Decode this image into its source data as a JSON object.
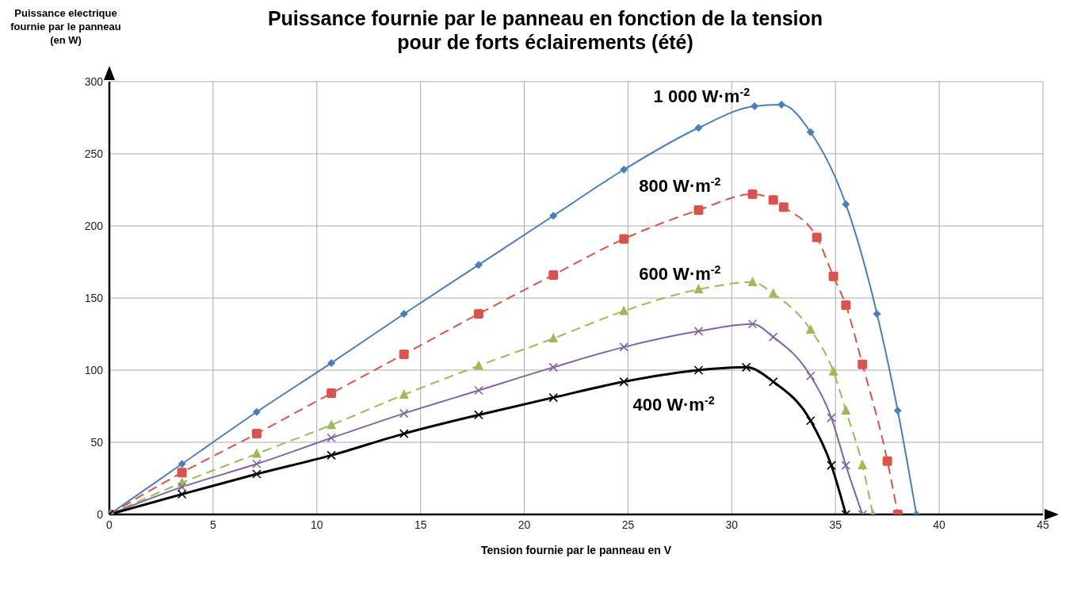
{
  "chart_data": {
    "type": "line",
    "title": "Puissance fournie par le panneau en fonction de la tension pour de forts éclairements (été)",
    "xlabel": "Tension fournie par le panneau en V",
    "ylabel": "Puissance electrique fournie par le panneau (en W)",
    "xlim": [
      0,
      45
    ],
    "xticks": [
      0,
      5,
      10,
      15,
      20,
      25,
      30,
      35,
      40,
      45
    ],
    "ylim": [
      0,
      300
    ],
    "yticks": [
      0,
      50,
      100,
      150,
      200,
      250,
      300
    ],
    "grid": true,
    "series": [
      {
        "name": "1 000 W·m$^{-2}$",
        "color": "#4a7ebb",
        "marker": "diamond",
        "line_style": "solid",
        "x": [
          0,
          3.5,
          7.1,
          10.7,
          14.2,
          17.8,
          21.4,
          24.8,
          28.4,
          31.1,
          32.4,
          33.8,
          35.5,
          37,
          38,
          38.9
        ],
        "values": [
          0,
          35,
          71,
          105,
          139,
          173,
          207,
          239,
          268,
          283,
          284,
          265,
          215,
          139,
          72,
          0
        ]
      },
      {
        "name": "800 W·m$^{-2}$",
        "color": "#d9534f",
        "marker": "square",
        "line_style": "dashed",
        "x": [
          0,
          3.5,
          7.1,
          10.7,
          14.2,
          17.8,
          21.4,
          24.8,
          28.4,
          31,
          32,
          32.5,
          34.1,
          34.9,
          35.5,
          36.3,
          37.5,
          38
        ],
        "values": [
          0,
          29,
          56,
          84,
          111,
          139,
          166,
          191,
          211,
          222,
          218,
          213,
          192,
          165,
          145,
          104,
          37,
          0
        ]
      },
      {
        "name": "600 W·m$^{-2}$",
        "color": "#9bbb59",
        "marker": "triangle",
        "line_style": "dashed",
        "x": [
          0,
          3.5,
          7.1,
          10.7,
          14.2,
          17.8,
          21.4,
          24.8,
          28.4,
          31,
          32,
          33.8,
          34.9,
          35.5,
          36.3,
          36.8
        ],
        "values": [
          0,
          22,
          42,
          62,
          83,
          103,
          122,
          141,
          156,
          161,
          153,
          128,
          99,
          72,
          34,
          0
        ]
      },
      {
        "color": "#8064a2",
        "marker": "cross",
        "line_style": "solid",
        "x": [
          0,
          3.5,
          7.1,
          10.7,
          14.2,
          17.8,
          21.4,
          24.8,
          28.4,
          31,
          32,
          33.8,
          34.8,
          35.5,
          36.3
        ],
        "values": [
          0,
          19,
          35,
          53,
          70,
          86,
          102,
          116,
          127,
          132,
          123,
          96,
          67,
          34,
          0
        ]
      },
      {
        "name": "400 W·m$^{-2}$",
        "color": "#000000",
        "marker": "cross",
        "line_style": "solid",
        "x": [
          0,
          3.5,
          7.1,
          10.7,
          14.2,
          17.8,
          21.4,
          24.8,
          28.4,
          30.7,
          32,
          33.8,
          34.8,
          35.5
        ],
        "values": [
          0,
          14,
          28,
          41,
          56,
          69,
          81,
          92,
          100,
          102,
          92,
          65,
          34,
          0
        ]
      }
    ]
  }
}
